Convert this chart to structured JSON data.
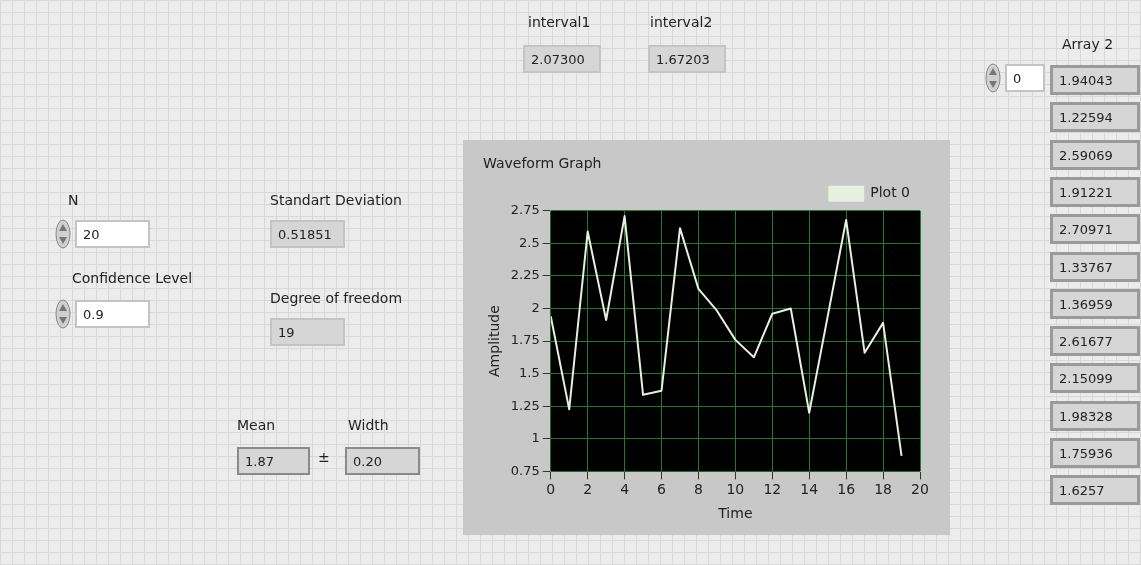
{
  "chart_data": [
    {
      "type": "line",
      "title": "Waveform Graph",
      "xlabel": "Time",
      "ylabel": "Amplitude",
      "x": [
        0,
        1,
        2,
        3,
        4,
        5,
        6,
        7,
        8,
        9,
        10,
        11,
        12,
        13,
        14,
        15,
        16,
        17,
        18,
        19
      ],
      "series": [
        {
          "name": "Plot 0",
          "color": "#e6efe0",
          "values": [
            1.94043,
            1.22594,
            2.59069,
            1.91221,
            2.70971,
            1.33767,
            1.36959,
            2.61677,
            2.15099,
            1.98328,
            1.75936,
            1.6257,
            1.96,
            2.0,
            1.2,
            1.94,
            2.68,
            1.66,
            1.89,
            0.87
          ]
        }
      ],
      "xlim": [
        0,
        20
      ],
      "xticks": [
        0,
        2,
        4,
        6,
        8,
        10,
        12,
        14,
        16,
        18,
        20
      ],
      "ylim": [
        0.75,
        2.75
      ],
      "yticks": [
        0.75,
        1,
        1.25,
        1.5,
        1.75,
        2,
        2.25,
        2.5,
        2.75
      ],
      "grid": true,
      "legend": "top right",
      "marker": "none",
      "line_style": "solid"
    },
    {
      "type": "other",
      "annotations": [
        "interval1",
        "2.07300",
        "interval2",
        "1.67203",
        "Array 2",
        "0",
        "1.94043",
        "1.22594",
        "2.59069",
        "1.91221",
        "2.70971",
        "1.33767",
        "1.36959",
        "2.61677",
        "2.15099",
        "1.98328",
        "1.75936",
        "1.6257",
        "N",
        "20",
        "Confidence  Level",
        "0.9",
        "Standart Deviation",
        "0.51851",
        "Degree of freedom",
        "19",
        "Mean",
        "1.87",
        "±",
        "Width",
        "0.20"
      ]
    }
  ]
}
